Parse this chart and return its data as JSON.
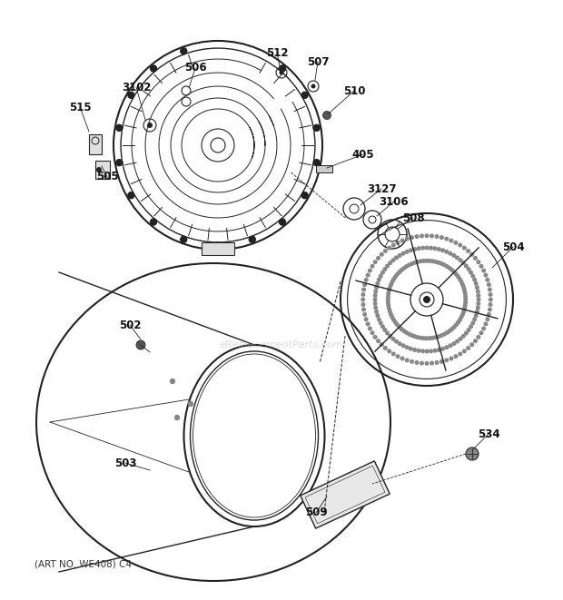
{
  "background_color": "#ffffff",
  "line_color": "#222222",
  "label_color": "#111111",
  "watermark_text": "eReplacementParts.com",
  "footer_text": "(ART NO. WE408) C4",
  "figsize": [
    6.2,
    6.61
  ],
  "dpi": 100
}
